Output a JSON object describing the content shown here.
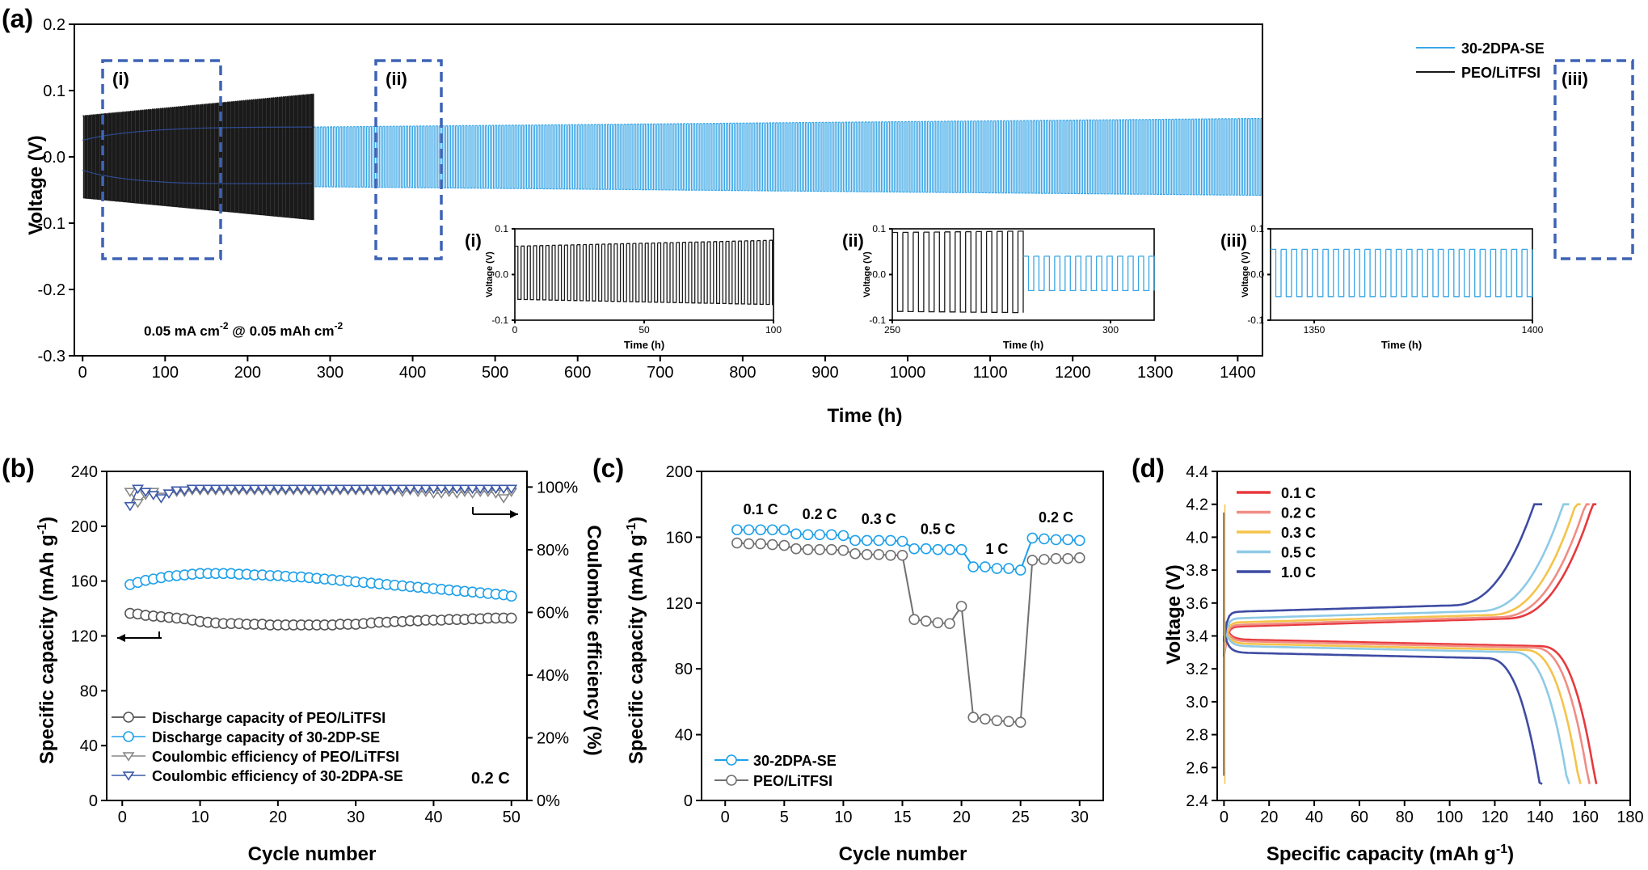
{
  "figure": {
    "panel_tags": [
      "(a)",
      "(b)",
      "(c)",
      "(d)"
    ]
  },
  "chart_data": [
    {
      "id": "a",
      "type": "line",
      "xlabel": "Time (h)",
      "ylabel": "Voltage (V)",
      "xlim": [
        -10,
        1430
      ],
      "ylim": [
        -0.3,
        0.2
      ],
      "xticks": [
        0,
        100,
        200,
        300,
        400,
        500,
        600,
        700,
        800,
        900,
        1000,
        1100,
        1200,
        1300,
        1400
      ],
      "yticks": [
        -0.3,
        -0.2,
        -0.1,
        0.0,
        0.1,
        0.2
      ],
      "ytick_labels": [
        "-0.3",
        "-0.2",
        "-0.1",
        "0.0",
        "0.1",
        "0.2"
      ],
      "legend_position": "top-right",
      "annotation": "0.05 mA cm",
      "annotation_sup1": "-2",
      "annotation_mid": " @ 0.05 mAh cm",
      "annotation_sup2": "-2",
      "region_labels": [
        "(i)",
        "(ii)",
        "(iii)"
      ],
      "regions": [
        [
          -10,
          100
        ],
        [
          250,
          310
        ],
        [
          1350,
          1430
        ]
      ],
      "series": [
        {
          "name": "30-2DPA-SE",
          "color": "#3aa6e6",
          "t_range": [
            280,
            1430
          ],
          "amplitude_start": 0.045,
          "amplitude_end": 0.058,
          "mid": -0.035
        },
        {
          "name": "PEO/LiTFSI",
          "color": "#1a1a1a",
          "t_range": [
            0,
            280
          ],
          "amplitude_start": 0.062,
          "amplitude_end": 0.095
        }
      ],
      "insets": [
        {
          "label": "(i)",
          "xlabel": "Time (h)",
          "ylabel": "Voltage (V)",
          "xlim": [
            0,
            100
          ],
          "xticks": [
            0,
            50,
            100
          ],
          "ylim": [
            -0.1,
            0.1
          ],
          "yticks": [
            -0.1,
            0.0,
            0.1
          ],
          "ytick_labels": [
            "-0.1",
            "0.0",
            "0.1"
          ],
          "series": [
            {
              "color": "#1a1a1a",
              "t_range": [
                0,
                100
              ],
              "amp_start": 0.062,
              "amp_end": 0.075
            }
          ]
        },
        {
          "label": "(ii)",
          "xlabel": "Time (h)",
          "ylabel": "Voltage (V)",
          "xlim": [
            250,
            310
          ],
          "xticks": [
            250,
            300
          ],
          "ylim": [
            -0.1,
            0.1
          ],
          "yticks": [
            -0.1,
            0.0,
            0.1
          ],
          "ytick_labels": [
            "-0.1",
            "0.0",
            "0.1"
          ],
          "series": [
            {
              "color": "#1a1a1a",
              "t_range": [
                250,
                280
              ],
              "amp_start": 0.092,
              "amp_end": 0.095
            },
            {
              "color": "#3aa6e6",
              "t_range": [
                280,
                310
              ],
              "amp_start": 0.04,
              "amp_end": 0.04
            }
          ]
        },
        {
          "label": "(iii)",
          "xlabel": "Time (h)",
          "ylabel": "Voltage (V)",
          "xlim": [
            1340,
            1400
          ],
          "xticks": [
            1350,
            1400
          ],
          "ylim": [
            -0.1,
            0.1
          ],
          "yticks": [
            -0.1,
            0.0,
            0.1
          ],
          "ytick_labels": [
            "-0.1",
            "0.0",
            "0.1"
          ],
          "series": [
            {
              "color": "#3aa6e6",
              "t_range": [
                1340,
                1400
              ],
              "amp_start": 0.055,
              "amp_end": 0.055
            }
          ]
        }
      ]
    },
    {
      "id": "b",
      "type": "line",
      "xlabel": "Cycle number",
      "ylabel": "Specific capacity (mAh g",
      "ylabel_sup": "-1",
      "ylabel_end": ")",
      "y2label": "Coulombic efficiency (%)",
      "xlim": [
        -2,
        52
      ],
      "ylim": [
        0,
        240
      ],
      "y2lim": [
        0,
        105
      ],
      "xticks": [
        0,
        10,
        20,
        30,
        40,
        50
      ],
      "yticks": [
        0,
        40,
        80,
        120,
        160,
        200,
        240
      ],
      "y2ticks": [
        0,
        20,
        40,
        60,
        80,
        100
      ],
      "y2tick_labels": [
        "0%",
        "20%",
        "40%",
        "60%",
        "80%",
        "100%"
      ],
      "legend_position": "bottom-left",
      "annotation": "0.2 C",
      "x": [
        1,
        2,
        3,
        4,
        5,
        6,
        7,
        8,
        9,
        10,
        11,
        12,
        13,
        14,
        15,
        16,
        17,
        18,
        19,
        20,
        21,
        22,
        23,
        24,
        25,
        26,
        27,
        28,
        29,
        30,
        31,
        32,
        33,
        34,
        35,
        36,
        37,
        38,
        39,
        40,
        41,
        42,
        43,
        44,
        45,
        46,
        47,
        48,
        49,
        50
      ],
      "series": [
        {
          "name": "Discharge capacity of PEO/LiTFSI",
          "axis": "left",
          "marker": "circle",
          "color": "#555555",
          "line": "#333333",
          "values": [
            136.5,
            136,
            135,
            134.5,
            134,
            133.5,
            133,
            132.5,
            131.5,
            130.5,
            130,
            129.5,
            129,
            129,
            129,
            128.5,
            128.5,
            128.5,
            128,
            128,
            128,
            128,
            128,
            128,
            128,
            128,
            128,
            128.5,
            128.5,
            128.5,
            129,
            129.5,
            130,
            130,
            130.5,
            130.5,
            131,
            131,
            131.5,
            131.5,
            131.5,
            132,
            132,
            132,
            132.5,
            132.5,
            133,
            133,
            133,
            133
          ]
        },
        {
          "name": "Discharge capacity of 30-2DP-SE",
          "axis": "left",
          "marker": "circle",
          "color": "#1ea0ea",
          "line": "#1ea0ea",
          "values": [
            157.5,
            159,
            160.5,
            161.5,
            162.5,
            163.5,
            164,
            164.5,
            165,
            165.5,
            165.5,
            165.5,
            165.5,
            165.5,
            165,
            165,
            164.5,
            164.5,
            164,
            164,
            163.5,
            163,
            163,
            162.5,
            162,
            161.5,
            161,
            160.5,
            160,
            159.5,
            159,
            158.5,
            158,
            157.5,
            157,
            156.5,
            156,
            155.5,
            155,
            154.5,
            154,
            153.5,
            153,
            152.5,
            152,
            151.5,
            151,
            150.5,
            150,
            149
          ]
        },
        {
          "name": "Coulombic efficiency of PEO/LiTFSI",
          "axis": "right",
          "marker": "triangle-down",
          "color": "#888888",
          "line": "#888888",
          "values": [
            98.5,
            95,
            97.5,
            98.5,
            97,
            98,
            98.5,
            98.5,
            99,
            99,
            99,
            99,
            99,
            99,
            99,
            99,
            99,
            99,
            99,
            99,
            99,
            99,
            99,
            99,
            99,
            99,
            99,
            99,
            99,
            99,
            99,
            99,
            99,
            99,
            99,
            98.5,
            99,
            98.5,
            98.5,
            98,
            98,
            98.5,
            98,
            98.5,
            98,
            98.5,
            98.5,
            98,
            96.5,
            98.5
          ]
        },
        {
          "name": "Coulombic efficiency of 30-2DPA-SE",
          "axis": "right",
          "marker": "triangle-down",
          "color": "#3d5aa8",
          "line": "#3d5aa8",
          "values": [
            94,
            99.5,
            98.5,
            97.5,
            96.5,
            98,
            99,
            99,
            99.5,
            99.5,
            99.5,
            99.5,
            99.5,
            99.5,
            99.5,
            99.5,
            99.5,
            99.5,
            99.5,
            99.5,
            99.5,
            99.5,
            99.5,
            99.5,
            99.5,
            99.5,
            99.5,
            99.5,
            99.5,
            99.5,
            99.5,
            99.5,
            99.5,
            99.5,
            99.5,
            99.5,
            99.5,
            99.5,
            99.5,
            99.5,
            99.5,
            99.5,
            99.5,
            99.5,
            99.5,
            99.5,
            99.5,
            99.5,
            99.5,
            99.5
          ]
        }
      ]
    },
    {
      "id": "c",
      "type": "line",
      "xlabel": "Cycle number",
      "ylabel": "Specific capacity (mAh g",
      "ylabel_sup": "-1",
      "ylabel_end": ")",
      "xlim": [
        -2,
        32
      ],
      "ylim": [
        0,
        200
      ],
      "xticks": [
        0,
        5,
        10,
        15,
        20,
        25,
        30
      ],
      "yticks": [
        0,
        40,
        80,
        120,
        160,
        200
      ],
      "legend_position": "bottom-left",
      "x": [
        1,
        2,
        3,
        4,
        5,
        6,
        7,
        8,
        9,
        10,
        11,
        12,
        13,
        14,
        15,
        16,
        17,
        18,
        19,
        20,
        21,
        22,
        23,
        24,
        25,
        26,
        27,
        28,
        29,
        30
      ],
      "series": [
        {
          "name": "30-2DPA-SE",
          "marker": "circle",
          "color": "#1ea0ea",
          "line": "#1ea0ea",
          "values": [
            164.5,
            164.5,
            164.5,
            164.5,
            164.5,
            162,
            161.5,
            161.5,
            161.5,
            161,
            158,
            158,
            158,
            158,
            157.5,
            153,
            153,
            152.5,
            152.5,
            152.5,
            142,
            142,
            141,
            141,
            140,
            159.5,
            159,
            158.5,
            158.5,
            158
          ]
        },
        {
          "name": "PEO/LiTFSI",
          "marker": "circle",
          "color": "#707070",
          "line": "#707070",
          "values": [
            156.5,
            156,
            156,
            155.5,
            155,
            153,
            152.5,
            152.5,
            152.5,
            152,
            150,
            149.5,
            149.5,
            149,
            149,
            110,
            109,
            108,
            107.5,
            118,
            50.5,
            49.5,
            48.5,
            48,
            47.5,
            146,
            146.5,
            147,
            147,
            147.5
          ]
        }
      ],
      "rate_labels": [
        {
          "text": "0.1 C",
          "x": 3,
          "y": 174
        },
        {
          "text": "0.2 C",
          "x": 8,
          "y": 171
        },
        {
          "text": "0.3 C",
          "x": 13,
          "y": 168
        },
        {
          "text": "0.5 C",
          "x": 18,
          "y": 162
        },
        {
          "text": "1 C",
          "x": 23,
          "y": 150
        },
        {
          "text": "0.2 C",
          "x": 28,
          "y": 169
        }
      ]
    },
    {
      "id": "d",
      "type": "line",
      "xlabel": "Specific capacity (mAh g",
      "xlabel_sup": "-1",
      "xlabel_end": ")",
      "ylabel": "Voltage (V)",
      "xlim": [
        -3,
        180
      ],
      "ylim": [
        2.4,
        4.4
      ],
      "xticks": [
        0,
        20,
        40,
        60,
        80,
        100,
        120,
        140,
        160,
        180
      ],
      "yticks": [
        2.4,
        2.6,
        2.8,
        3.0,
        3.2,
        3.4,
        3.6,
        3.8,
        4.0,
        4.2,
        4.4
      ],
      "ytick_labels": [
        "2.4",
        "2.6",
        "2.8",
        "3.0",
        "3.2",
        "3.4",
        "3.6",
        "3.8",
        "4.0",
        "4.2",
        "4.4"
      ],
      "legend_position": "top-left",
      "series": [
        {
          "name": "0.1 C",
          "color": "#e8393d",
          "capacity": 165,
          "charge_plateau": 3.455,
          "discharge_plateau": 3.38
        },
        {
          "name": "0.2 C",
          "color": "#f08c84",
          "capacity": 162,
          "charge_plateau": 3.465,
          "discharge_plateau": 3.37
        },
        {
          "name": "0.3 C",
          "color": "#f5c34a",
          "capacity": 158,
          "charge_plateau": 3.48,
          "discharge_plateau": 3.355
        },
        {
          "name": "0.5 C",
          "color": "#8ecae6",
          "capacity": 153,
          "charge_plateau": 3.505,
          "discharge_plateau": 3.34
        },
        {
          "name": "1.0 C",
          "color": "#3e4ba3",
          "capacity": 141,
          "charge_plateau": 3.545,
          "discharge_plateau": 3.3
        }
      ]
    }
  ]
}
